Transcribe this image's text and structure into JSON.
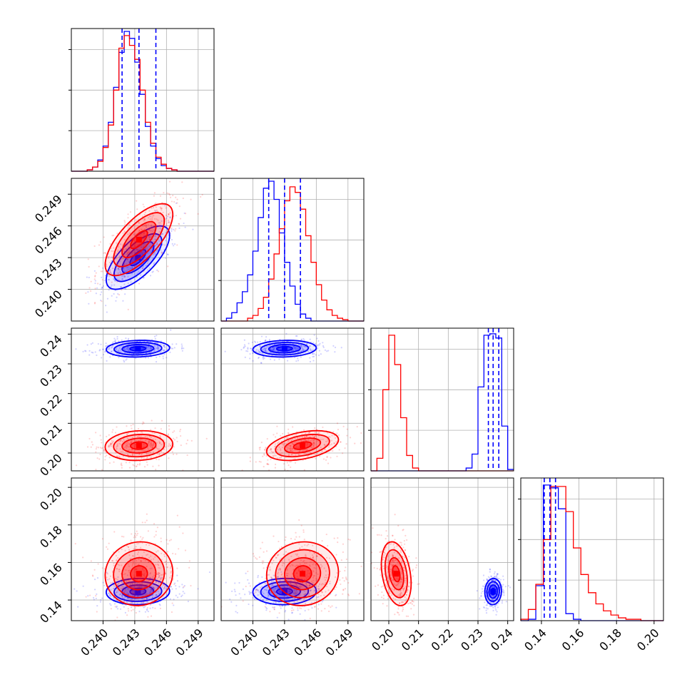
{
  "chart_data": {
    "type": "corner",
    "grid": true,
    "parameters": [
      {
        "range": [
          0.237,
          0.2505
        ],
        "ticks": [
          "0.240",
          "0.243",
          "0.246",
          "0.249"
        ]
      },
      {
        "range": [
          0.237,
          0.2505
        ],
        "ticks": [
          "0.240",
          "0.243",
          "0.246",
          "0.249"
        ]
      },
      {
        "range": [
          0.194,
          0.242
        ],
        "ticks": [
          "0.20",
          "0.21",
          "0.22",
          "0.23",
          "0.24"
        ]
      },
      {
        "range": [
          0.129,
          0.205
        ],
        "ticks": [
          "0.14",
          "0.16",
          "0.18",
          "0.20"
        ]
      }
    ],
    "series": [
      {
        "color": "#0000ff",
        "mean": [
          0.2433,
          0.243,
          0.2351,
          0.1445
        ],
        "std": [
          0.0015,
          0.0015,
          0.0014,
          0.0035
        ],
        "rho": [
          [
            1,
            0.7,
            0.1,
            0.05
          ],
          [
            0.7,
            1,
            0.1,
            0.05
          ],
          [
            0.1,
            0.1,
            1,
            0.05
          ],
          [
            0.05,
            0.05,
            0.05,
            1
          ]
        ],
        "quantiles_shown": [
          [
            0.2418,
            0.2434,
            0.245
          ],
          [
            0.2415,
            0.243,
            0.2445
          ],
          [
            0.2335,
            0.2351,
            0.237
          ],
          [
            0.1415,
            0.1445,
            0.1475
          ]
        ]
      },
      {
        "color": "#ff0000",
        "mean": [
          0.2434,
          0.2447,
          0.2025,
          0.154
        ],
        "std": [
          0.0016,
          0.0017,
          0.0025,
          0.0085
        ],
        "rho": [
          [
            1,
            0.7,
            0.1,
            0.05
          ],
          [
            0.7,
            1,
            0.4,
            0.05
          ],
          [
            0.1,
            0.4,
            1,
            -0.3
          ],
          [
            0.05,
            0.05,
            -0.3,
            1
          ]
        ],
        "quantiles_shown": []
      }
    ],
    "hist1d": [
      {
        "bins": [
          0.237,
          0.2375,
          0.238,
          0.2385,
          0.239,
          0.2395,
          0.24,
          0.2405,
          0.241,
          0.2415,
          0.242,
          0.2425,
          0.243,
          0.2435,
          0.244,
          0.2445,
          0.245,
          0.2455,
          0.246,
          0.2465,
          0.247,
          0.2475,
          0.248,
          0.2485,
          0.249,
          0.2495,
          0.25,
          0.2505
        ],
        "blue": [
          0,
          0,
          0,
          0.01,
          0.03,
          0.08,
          0.18,
          0.35,
          0.6,
          0.85,
          1.0,
          0.95,
          0.78,
          0.55,
          0.32,
          0.18,
          0.09,
          0.04,
          0.02,
          0.01,
          0,
          0,
          0,
          0,
          0,
          0,
          0
        ],
        "red": [
          0,
          0,
          0,
          0.01,
          0.03,
          0.07,
          0.17,
          0.33,
          0.58,
          0.88,
          0.97,
          0.9,
          0.8,
          0.58,
          0.35,
          0.2,
          0.1,
          0.05,
          0.02,
          0.01,
          0,
          0,
          0,
          0,
          0,
          0,
          0
        ]
      },
      {
        "bins": [
          0.237,
          0.2375,
          0.238,
          0.2385,
          0.239,
          0.2395,
          0.24,
          0.2405,
          0.241,
          0.2415,
          0.242,
          0.2425,
          0.243,
          0.2435,
          0.244,
          0.2445,
          0.245,
          0.2455,
          0.246,
          0.2465,
          0.247,
          0.2475,
          0.248,
          0.2485,
          0.249,
          0.2495,
          0.25,
          0.2505
        ],
        "blue": [
          0,
          0.02,
          0.06,
          0.13,
          0.21,
          0.33,
          0.5,
          0.74,
          0.95,
          1.0,
          0.87,
          0.63,
          0.42,
          0.25,
          0.12,
          0.05,
          0.02,
          0,
          0,
          0,
          0,
          0,
          0,
          0,
          0,
          0,
          0
        ],
        "red": [
          0,
          0,
          0,
          0,
          0,
          0.02,
          0.04,
          0.09,
          0.17,
          0.3,
          0.48,
          0.66,
          0.86,
          0.96,
          0.92,
          0.8,
          0.61,
          0.42,
          0.26,
          0.15,
          0.08,
          0.04,
          0.02,
          0.01,
          0,
          0,
          0
        ]
      },
      {
        "bins": [
          0.194,
          0.196,
          0.198,
          0.2,
          0.202,
          0.204,
          0.206,
          0.208,
          0.21,
          0.212,
          0.214,
          0.216,
          0.218,
          0.22,
          0.222,
          0.224,
          0.226,
          0.228,
          0.23,
          0.232,
          0.234,
          0.236,
          0.238,
          0.24,
          0.242
        ],
        "blue": [
          0,
          0,
          0,
          0,
          0,
          0,
          0,
          0,
          0,
          0,
          0,
          0,
          0,
          0,
          0,
          0,
          0.02,
          0.12,
          0.6,
          0.97,
          0.98,
          0.95,
          0.32,
          0.01
        ],
        "red": [
          0,
          0.09,
          0.58,
          0.97,
          0.76,
          0.38,
          0.11,
          0.02,
          0,
          0,
          0,
          0,
          0,
          0,
          0,
          0,
          0,
          0,
          0,
          0,
          0,
          0,
          0,
          0
        ]
      },
      {
        "bins": [
          0.129,
          0.133,
          0.137,
          0.141,
          0.145,
          0.149,
          0.153,
          0.157,
          0.161,
          0.165,
          0.169,
          0.173,
          0.177,
          0.181,
          0.185,
          0.189,
          0.193,
          0.197,
          0.201,
          0.205
        ],
        "blue": [
          0,
          0.01,
          0.25,
          0.97,
          0.95,
          0.8,
          0.05,
          0.01,
          0,
          0,
          0,
          0,
          0,
          0,
          0,
          0,
          0,
          0,
          0
        ],
        "red": [
          0.01,
          0.08,
          0.26,
          0.58,
          0.96,
          0.96,
          0.78,
          0.52,
          0.33,
          0.2,
          0.12,
          0.07,
          0.04,
          0.02,
          0.01,
          0.01,
          0,
          0,
          0
        ]
      }
    ]
  }
}
